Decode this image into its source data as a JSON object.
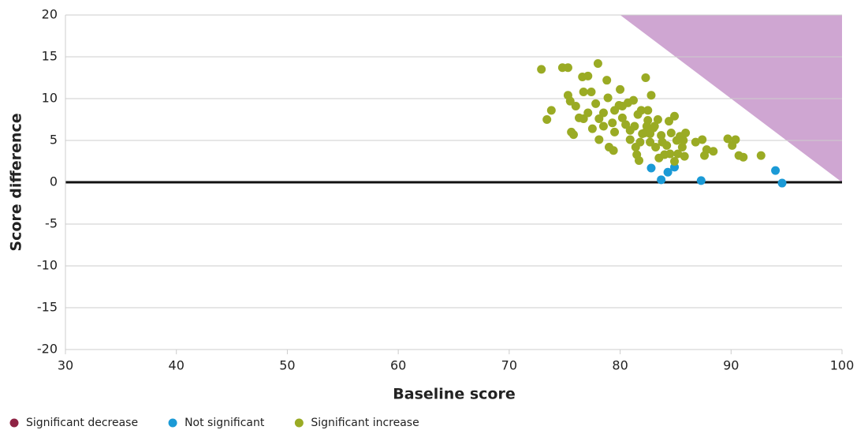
{
  "chart_data": {
    "type": "scatter",
    "xlabel": "Baseline score",
    "ylabel": "Score difference",
    "xlim": [
      30,
      100
    ],
    "xticks": [
      30,
      40,
      50,
      60,
      70,
      80,
      90,
      100
    ],
    "ylim": [
      -20,
      20
    ],
    "yticks": [
      -20,
      -15,
      -10,
      -5,
      0,
      5,
      10,
      15,
      20
    ],
    "grid": true,
    "legend": "bottom-left",
    "region_color": "#cfa6d2",
    "series": [
      {
        "name": "Significant decrease",
        "color": "#8e2344",
        "x": [],
        "y": []
      },
      {
        "name": "Not significant",
        "color": "#1b9ad6",
        "x": [
          82.8,
          83.7,
          84.3,
          84.9,
          87.3,
          94.0,
          94.6
        ],
        "y": [
          1.7,
          0.3,
          1.2,
          1.8,
          0.2,
          1.4,
          -0.1
        ]
      },
      {
        "name": "Significant increase",
        "color": "#9aab24",
        "x": [
          72.9,
          73.4,
          73.8,
          74.8,
          75.3,
          75.3,
          75.5,
          75.6,
          75.8,
          76.0,
          76.3,
          76.6,
          76.7,
          77.1,
          77.4,
          77.5,
          77.8,
          78.0,
          78.1,
          78.5,
          78.8,
          78.9,
          79.0,
          79.4,
          79.3,
          79.5,
          79.9,
          80.0,
          80.2,
          80.5,
          80.7,
          80.9,
          81.2,
          81.4,
          81.5,
          81.7,
          81.9,
          82.2,
          82.3,
          82.5,
          82.7,
          82.8,
          83.0,
          83.2,
          83.4,
          83.5,
          83.7,
          84.0,
          84.2,
          84.4,
          84.6,
          84.9,
          85.1,
          85.2,
          85.4,
          85.6,
          85.8,
          85.9,
          85.7,
          86.8,
          87.4,
          87.6,
          87.8,
          88.4,
          89.7,
          90.1,
          90.4,
          90.7,
          91.1,
          92.7,
          76.7,
          77.1,
          78.1,
          78.5,
          79.5,
          80.2,
          81.3,
          81.6,
          82.0,
          82.4,
          82.5,
          82.7,
          83.1,
          81.8,
          80.9,
          84.5,
          84.9,
          83.8
        ],
        "y": [
          13.5,
          7.5,
          8.6,
          13.7,
          13.7,
          10.4,
          9.7,
          6.0,
          5.7,
          9.1,
          7.7,
          12.6,
          10.8,
          12.7,
          10.8,
          6.4,
          9.4,
          14.2,
          5.1,
          8.3,
          12.2,
          10.1,
          4.2,
          3.8,
          7.1,
          6.0,
          9.2,
          11.1,
          7.7,
          6.9,
          9.5,
          5.1,
          9.8,
          4.2,
          3.3,
          2.6,
          8.6,
          5.9,
          12.5,
          7.4,
          4.8,
          10.4,
          6.5,
          4.2,
          7.5,
          2.9,
          5.6,
          3.3,
          4.4,
          7.3,
          5.9,
          7.9,
          5.0,
          3.4,
          5.5,
          4.2,
          3.1,
          5.9,
          5.0,
          4.8,
          5.1,
          3.2,
          3.9,
          3.7,
          5.2,
          4.4,
          5.1,
          3.2,
          3.0,
          3.2,
          7.6,
          8.3,
          7.6,
          6.7,
          8.6,
          9.1,
          6.7,
          8.1,
          5.8,
          6.7,
          8.6,
          5.8,
          6.7,
          4.8,
          6.2,
          3.4,
          2.5,
          4.8
        ]
      }
    ]
  }
}
